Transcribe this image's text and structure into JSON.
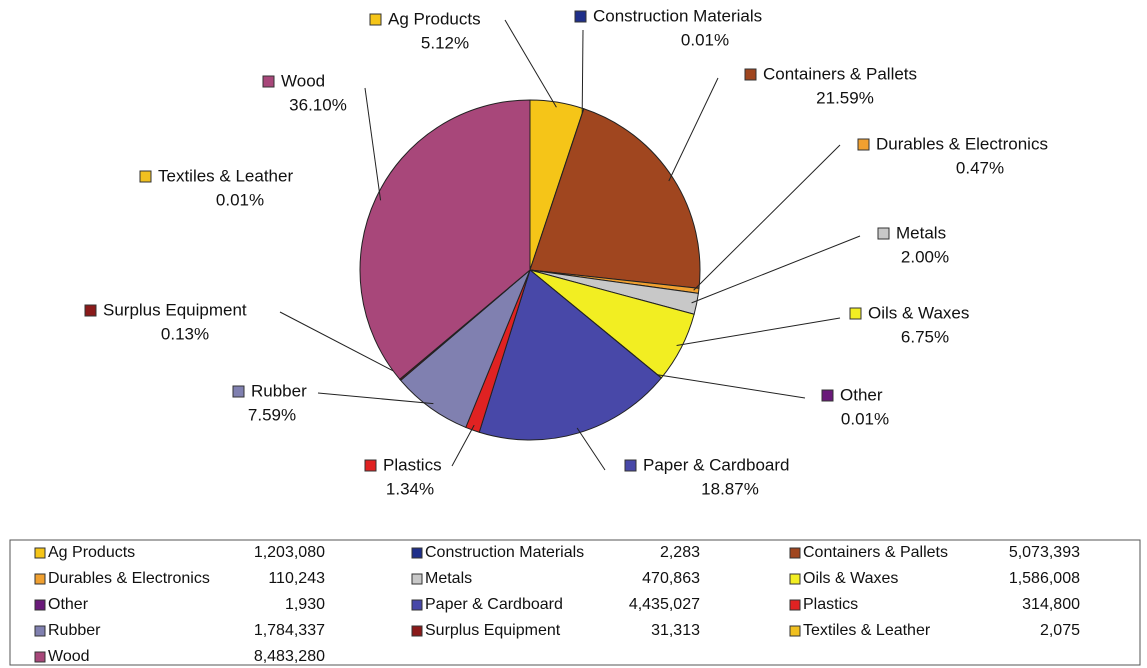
{
  "chart_data": {
    "type": "pie",
    "categories": [
      "Ag Products",
      "Construction Materials",
      "Containers & Pallets",
      "Durables & Electronics",
      "Metals",
      "Oils & Waxes",
      "Other",
      "Paper & Cardboard",
      "Plastics",
      "Rubber",
      "Surplus Equipment",
      "Textiles & Leather",
      "Wood"
    ],
    "values": [
      5.12,
      0.01,
      21.59,
      0.47,
      2.0,
      6.75,
      0.01,
      18.87,
      1.34,
      7.59,
      0.13,
      0.01,
      36.1
    ],
    "value_labels": [
      "5.12%",
      "0.01%",
      "21.59%",
      "0.47%",
      "2.00%",
      "6.75%",
      "0.01%",
      "18.87%",
      "1.34%",
      "7.59%",
      "0.13%",
      "0.01%",
      "36.10%"
    ],
    "colors": [
      "#f5c518",
      "#1f2f8a",
      "#a0461f",
      "#f0a030",
      "#c8c8c8",
      "#f2ee22",
      "#6a1a7a",
      "#4848a8",
      "#e02222",
      "#8080b0",
      "#8a1a1a",
      "#f0c020",
      "#a8477a"
    ],
    "amounts": [
      "1,203,080",
      "2,283",
      "5,073,393",
      "110,243",
      "470,863",
      "1,586,008",
      "1,930",
      "4,435,027",
      "314,800",
      "1,784,337",
      "31,313",
      "2,075",
      "8,483,280"
    ]
  }
}
